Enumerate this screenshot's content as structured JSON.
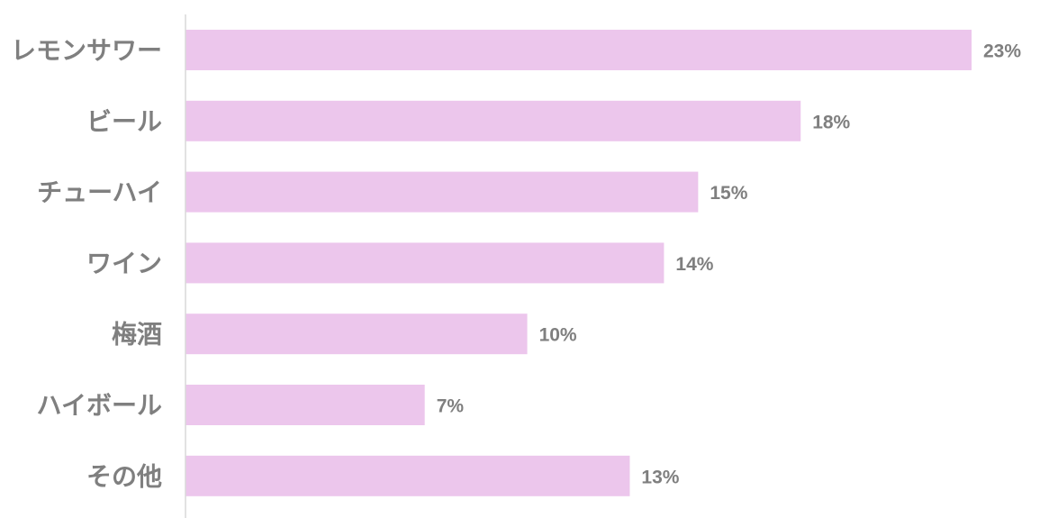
{
  "chart_data": {
    "type": "bar",
    "orientation": "horizontal",
    "categories": [
      "レモンサワー",
      "ビール",
      "チューハイ",
      "ワイン",
      "梅酒",
      "ハイボール",
      "その他"
    ],
    "values": [
      23,
      18,
      15,
      14,
      10,
      7,
      13
    ],
    "value_labels": [
      "23%",
      "18%",
      "15%",
      "14%",
      "10%",
      "7%",
      "13%"
    ],
    "unit": "%",
    "xlim": [
      0,
      23
    ],
    "grid": false,
    "bar_color": "#ecc6ec",
    "axis_color": "#d9d9d9",
    "label_color": "#7f7f7f"
  }
}
